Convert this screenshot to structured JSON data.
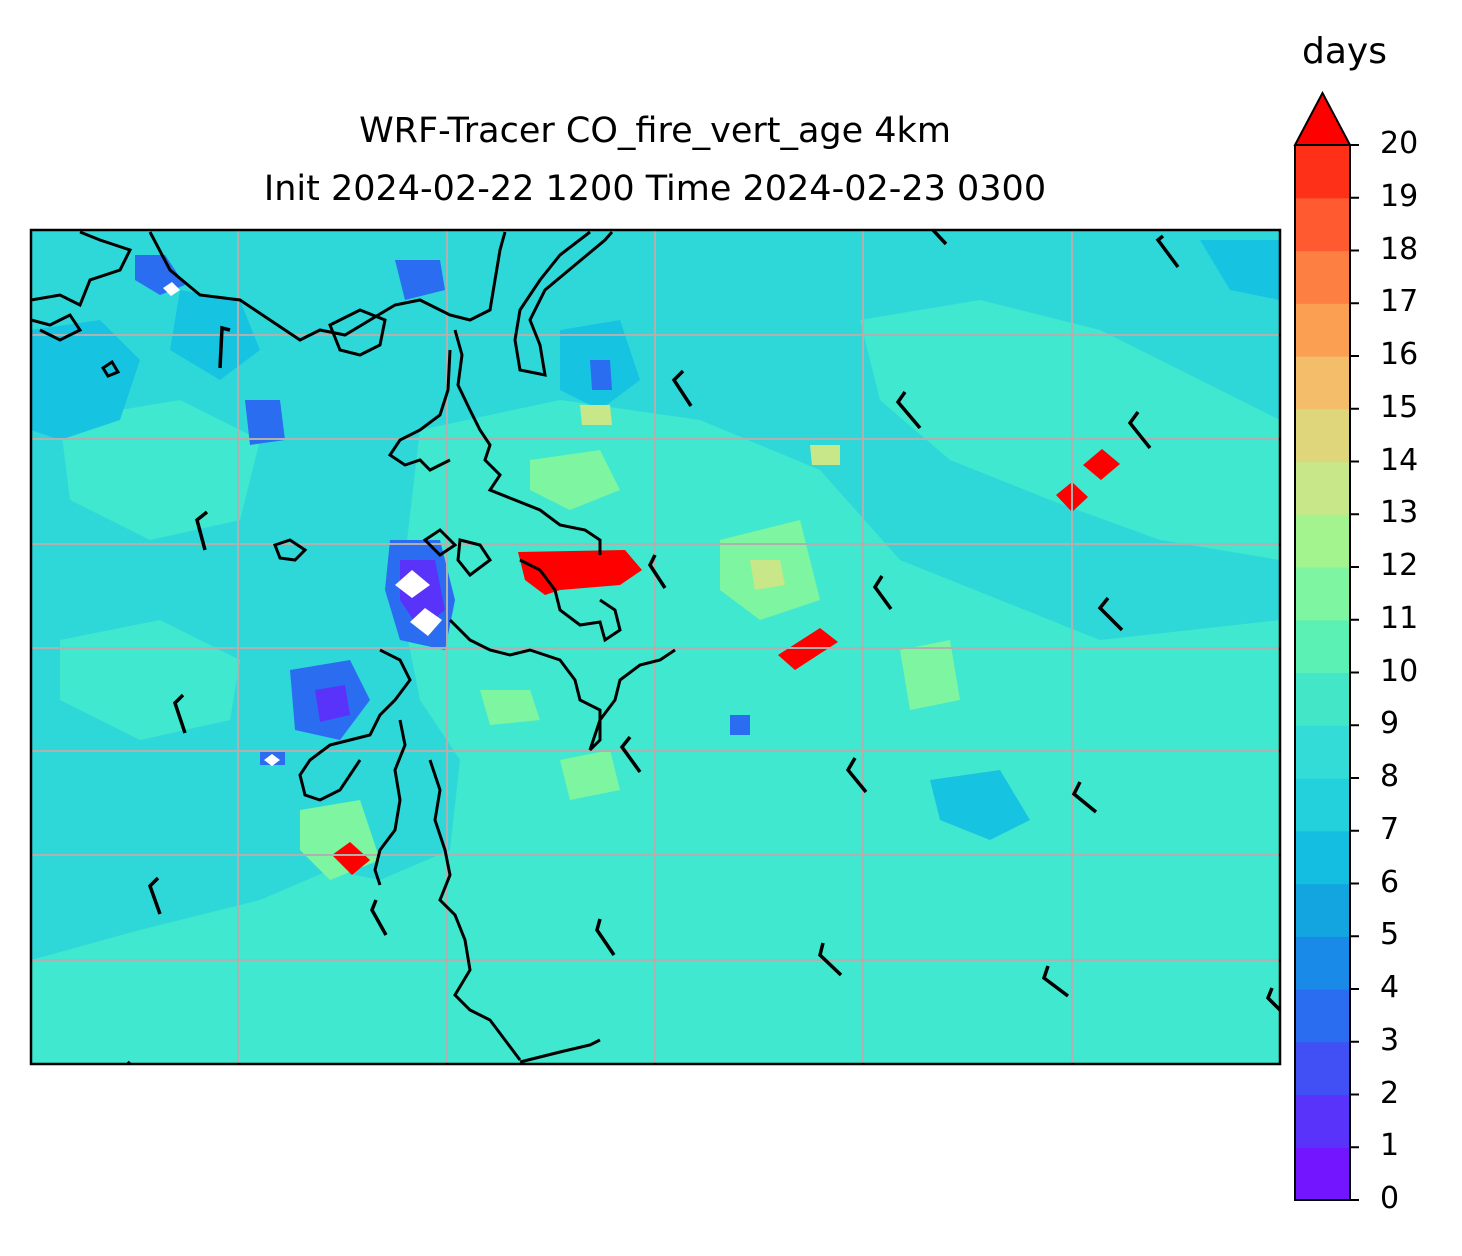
{
  "title_line1": "WRF-Tracer CO_fire_vert_age 4km",
  "title_line2": "Init 2024-02-22 1200 Time 2024-02-23 0300",
  "colorbar": {
    "units": "days",
    "ticks": [
      "0",
      "1",
      "2",
      "3",
      "4",
      "5",
      "6",
      "7",
      "8",
      "9",
      "10",
      "11",
      "12",
      "13",
      "14",
      "15",
      "16",
      "17",
      "18",
      "19",
      "20"
    ],
    "extend": "max",
    "colors": [
      "#7316ff",
      "#5a33fb",
      "#4150f4",
      "#2b6df0",
      "#1a8ae8",
      "#12a5e0",
      "#14bee0",
      "#22d1dc",
      "#33dcd6",
      "#44e6c8",
      "#5bf0b4",
      "#7ef5a0",
      "#a3f48e",
      "#c7e788",
      "#dfd67c",
      "#f3bd6a",
      "#fba052",
      "#fd7f42",
      "#ff5a30",
      "#ff3018",
      "#ff0000"
    ]
  },
  "map": {
    "background_color": "#2ed8d9",
    "gridline_color": "#b0b0b0",
    "coastline_color": "#000000",
    "barb_color": "#000000"
  }
}
